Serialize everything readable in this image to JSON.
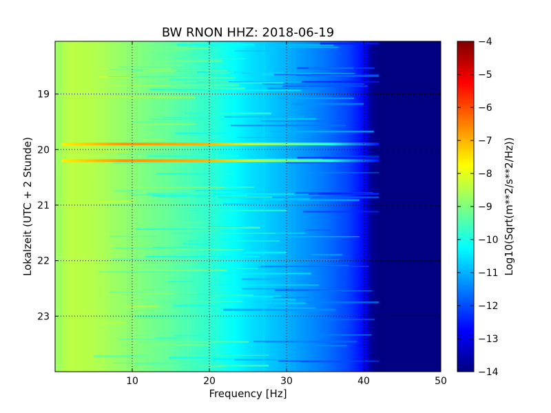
{
  "chart_data": {
    "type": "heatmap",
    "title": "BW RNON HHZ: 2018-06-19",
    "xlabel": "Frequency [Hz]",
    "ylabel": "Lokalzeit (UTC + 2 Stunde)",
    "xlim": [
      0,
      50
    ],
    "ylim": [
      24,
      18.05
    ],
    "x_ticks": [
      10,
      20,
      30,
      40,
      50
    ],
    "y_ticks": [
      19,
      20,
      21,
      22,
      23
    ],
    "grid": true,
    "colormap": "jet",
    "colorbar": {
      "label": "Log10(Sqrt(m**2/s**2/Hz))",
      "range": [
        -14,
        -4
      ],
      "ticks": [
        -4,
        -5,
        -6,
        -7,
        -8,
        -9,
        -10,
        -11,
        -12,
        -13,
        -14
      ]
    },
    "spectral_profile": {
      "frequency_hz": [
        0.5,
        2,
        5,
        10,
        15,
        20,
        25,
        30,
        35,
        38,
        40,
        41,
        42,
        43,
        45,
        50
      ],
      "log_amplitude": [
        -8.7,
        -8.4,
        -8.5,
        -8.9,
        -9.3,
        -9.8,
        -10.5,
        -11.0,
        -11.6,
        -12.1,
        -12.7,
        -13.8,
        -14,
        -14,
        -14,
        -14
      ]
    },
    "noise_bands": [
      {
        "time_h": 19.9,
        "peak_log_amplitude": -6.7,
        "max_frequency_hz": 42
      },
      {
        "time_h": 20.2,
        "peak_log_amplitude": -7.0,
        "max_frequency_hz": 42
      }
    ]
  }
}
